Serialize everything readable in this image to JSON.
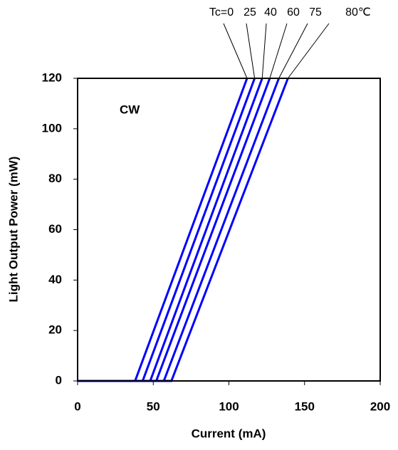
{
  "chart_data": {
    "type": "line",
    "x_label": "Current (mA)",
    "y_label": "Light Output Power (mW)",
    "annotation": "CW",
    "xlim": [
      0,
      200
    ],
    "xticks": [
      0,
      50,
      100,
      150,
      200
    ],
    "ylim": [
      0,
      120
    ],
    "yticks": [
      0,
      20,
      40,
      60,
      80,
      100,
      120
    ],
    "series": [
      {
        "name": "Tc=0",
        "color": "#0000ff",
        "x": [
          0,
          38,
          112
        ],
        "values": [
          0,
          0,
          120
        ]
      },
      {
        "name": "25",
        "color": "#0000ff",
        "x": [
          0,
          43,
          117
        ],
        "values": [
          0,
          0,
          120
        ]
      },
      {
        "name": "40",
        "color": "#0000ff",
        "x": [
          0,
          48,
          122
        ],
        "values": [
          0,
          0,
          120
        ]
      },
      {
        "name": "60",
        "color": "#0000ff",
        "x": [
          0,
          52,
          127
        ],
        "values": [
          0,
          0,
          120
        ]
      },
      {
        "name": "75",
        "color": "#0000ff",
        "x": [
          0,
          57,
          133
        ],
        "values": [
          0,
          0,
          120
        ]
      },
      {
        "name": "80℃",
        "color": "#0000ff",
        "x": [
          0,
          62,
          139
        ],
        "values": [
          0,
          0,
          120
        ]
      }
    ]
  }
}
